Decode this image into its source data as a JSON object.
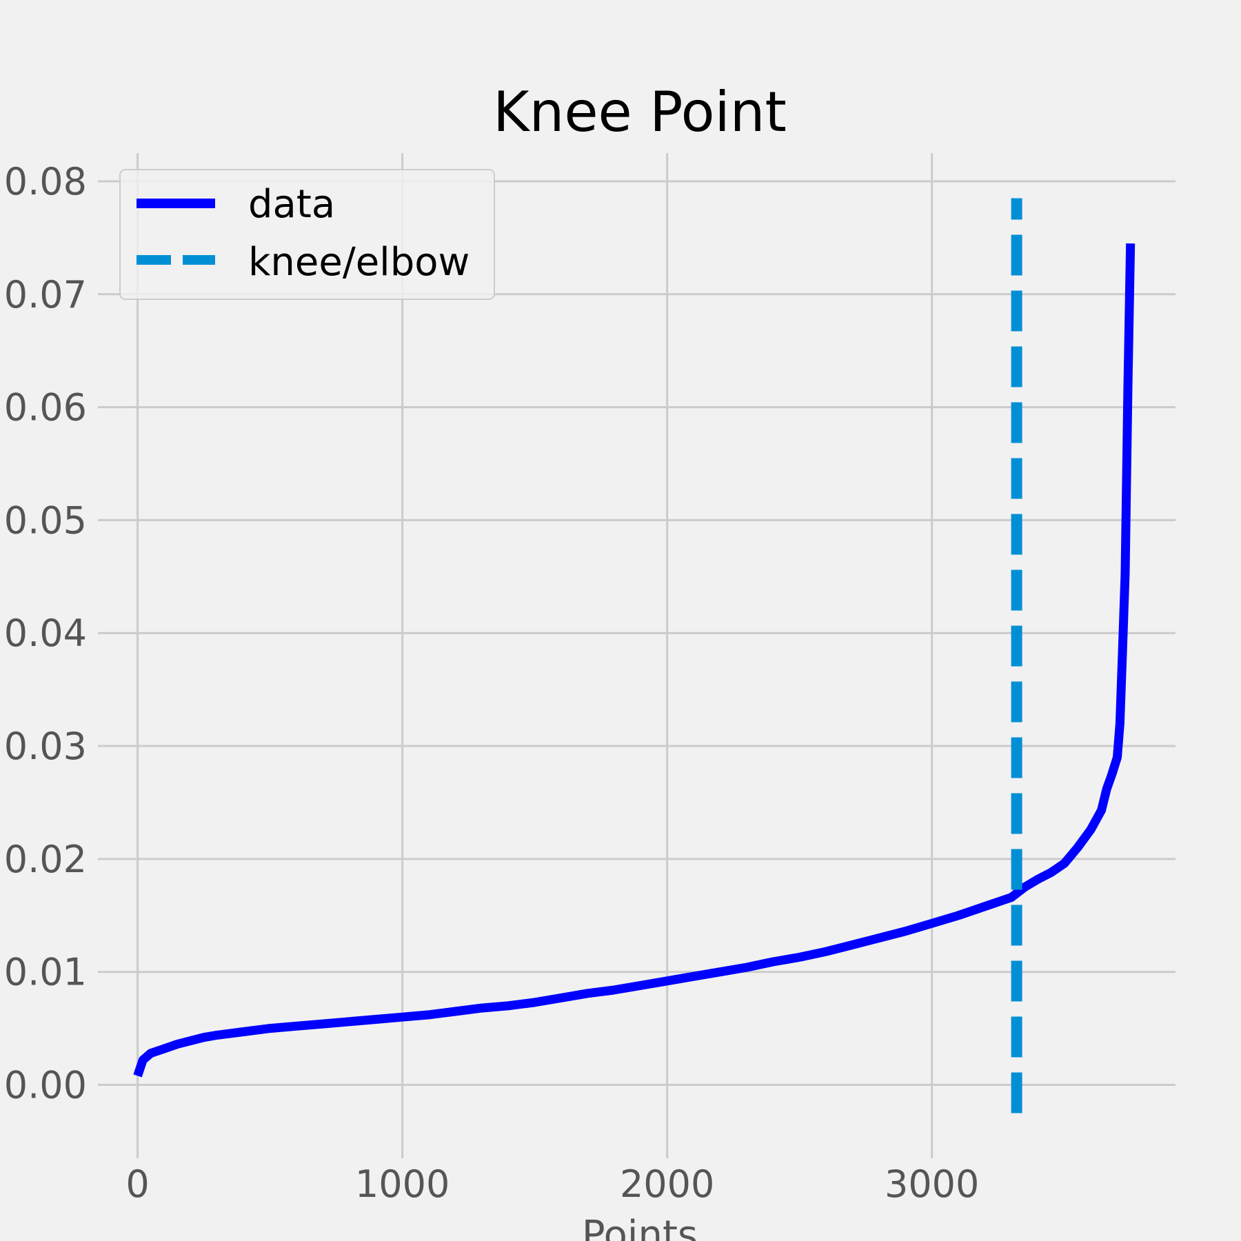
{
  "chart_data": {
    "type": "line",
    "title": "Knee Point",
    "xlabel": "Points",
    "ylabel": "",
    "xlim": [
      -150,
      3920
    ],
    "ylim": [
      -0.0065,
      0.0825
    ],
    "xticks": [
      0,
      1000,
      2000,
      3000
    ],
    "xtick_labels": [
      "0",
      "1000",
      "2000",
      "3000"
    ],
    "yticks": [
      0.0,
      0.01,
      0.02,
      0.03,
      0.04,
      0.05,
      0.06,
      0.07,
      0.08
    ],
    "ytick_labels": [
      "0.00",
      "0.01",
      "0.02",
      "0.03",
      "0.04",
      "0.05",
      "0.06",
      "0.07",
      "0.08"
    ],
    "grid": true,
    "legend_position": "top-left",
    "series": [
      {
        "name": "data",
        "color": "#0000ff",
        "style": "solid",
        "x": [
          0,
          10,
          20,
          50,
          100,
          150,
          200,
          250,
          300,
          400,
          500,
          600,
          700,
          800,
          900,
          1000,
          1100,
          1200,
          1300,
          1400,
          1500,
          1600,
          1700,
          1800,
          1900,
          2000,
          2100,
          2200,
          2300,
          2400,
          2500,
          2600,
          2700,
          2800,
          2900,
          3000,
          3100,
          3200,
          3300,
          3350,
          3400,
          3450,
          3500,
          3550,
          3600,
          3640,
          3660,
          3680,
          3700,
          3710,
          3720,
          3730,
          3740,
          3750
        ],
        "y": [
          0.0008,
          0.0015,
          0.0022,
          0.0028,
          0.0032,
          0.0036,
          0.0039,
          0.0042,
          0.0044,
          0.0047,
          0.005,
          0.0052,
          0.0054,
          0.0056,
          0.0058,
          0.006,
          0.0062,
          0.0065,
          0.0068,
          0.007,
          0.0073,
          0.0077,
          0.0081,
          0.0084,
          0.0088,
          0.0092,
          0.0096,
          0.01,
          0.0104,
          0.0109,
          0.0113,
          0.0118,
          0.0124,
          0.013,
          0.0136,
          0.0143,
          0.015,
          0.0158,
          0.0166,
          0.0175,
          0.0182,
          0.0188,
          0.0196,
          0.021,
          0.0226,
          0.0243,
          0.0262,
          0.0275,
          0.029,
          0.032,
          0.0385,
          0.0453,
          0.0615,
          0.0745
        ]
      },
      {
        "name": "knee/elbow",
        "color": "#008fd5",
        "style": "dashed",
        "x": [
          3320,
          3320
        ],
        "y": [
          -0.0025,
          0.0785
        ]
      }
    ]
  }
}
